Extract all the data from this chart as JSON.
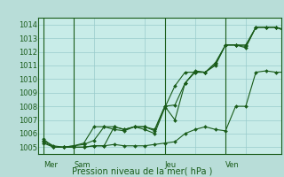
{
  "bg_color": "#b8ddd8",
  "plot_bg_color": "#c8ece8",
  "grid_color": "#99cccc",
  "line_color": "#1a5c1a",
  "marker_color": "#1a5c1a",
  "title": "Pression niveau de la mer( hPa )",
  "ylim": [
    1004.5,
    1014.5
  ],
  "yticks": [
    1005,
    1006,
    1007,
    1008,
    1009,
    1010,
    1011,
    1012,
    1013,
    1014
  ],
  "day_labels": [
    "Mer",
    "Sam",
    "Jeu",
    "Ven"
  ],
  "total_points": 25,
  "series1_x": [
    0,
    1,
    2,
    3,
    4,
    5,
    6,
    7,
    8,
    9,
    10,
    11,
    12,
    13,
    14,
    15,
    16,
    17,
    18,
    19,
    20,
    21,
    22,
    23,
    24
  ],
  "series1_y": [
    1005.5,
    1005.1,
    1005.0,
    1005.0,
    1005.0,
    1005.1,
    1005.1,
    1006.5,
    1006.3,
    1006.5,
    1006.3,
    1006.0,
    1007.9,
    1009.5,
    1010.5,
    1010.5,
    1010.5,
    1011.2,
    1012.5,
    1012.5,
    1012.3,
    1013.8,
    1013.8,
    1013.8,
    1013.6
  ],
  "series2_x": [
    0,
    1,
    2,
    3,
    4,
    5,
    6,
    7,
    8,
    9,
    10,
    11,
    12,
    13,
    14,
    15,
    16,
    17,
    18,
    19,
    20,
    21,
    22,
    23,
    24
  ],
  "series2_y": [
    1005.3,
    1005.0,
    1005.0,
    1005.0,
    1005.0,
    1005.1,
    1005.1,
    1005.2,
    1005.1,
    1005.1,
    1005.1,
    1005.2,
    1005.3,
    1005.4,
    1006.0,
    1006.3,
    1006.5,
    1006.3,
    1006.2,
    1008.0,
    1008.0,
    1010.5,
    1010.6,
    1010.5,
    1010.5
  ],
  "series3_x": [
    0,
    1,
    2,
    3,
    4,
    5,
    6,
    7,
    8,
    9,
    10,
    11,
    12,
    13,
    14,
    15,
    16,
    17,
    18,
    19,
    20,
    21,
    22,
    23,
    24
  ],
  "series3_y": [
    1005.6,
    1005.0,
    1005.0,
    1005.1,
    1005.3,
    1006.5,
    1006.5,
    1006.5,
    1006.3,
    1006.5,
    1006.5,
    1006.3,
    1008.0,
    1008.1,
    1009.7,
    1010.5,
    1010.5,
    1011.1,
    1012.5,
    1012.5,
    1012.5,
    1013.8,
    1013.8,
    1013.8,
    1013.5
  ],
  "series4_x": [
    0,
    1,
    2,
    3,
    4,
    5,
    6,
    7,
    8,
    9,
    10,
    11,
    12,
    13,
    14,
    15,
    16,
    17,
    18,
    19,
    20,
    21,
    22,
    23,
    24
  ],
  "series4_y": [
    1005.4,
    1005.0,
    1005.0,
    1005.1,
    1005.2,
    1005.5,
    1006.5,
    1006.3,
    1006.2,
    1006.5,
    1006.5,
    1006.2,
    1008.0,
    1007.0,
    1009.7,
    1010.6,
    1010.5,
    1011.0,
    1012.5,
    1012.5,
    1012.4,
    1013.8,
    1013.8,
    1013.8,
    1013.5
  ]
}
